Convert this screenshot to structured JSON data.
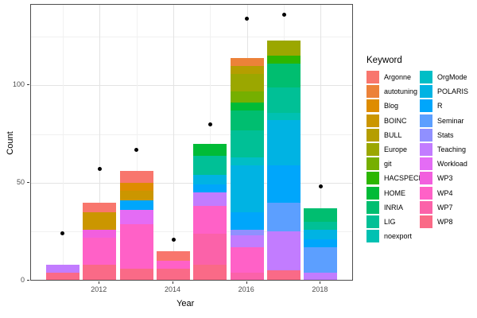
{
  "figure": {
    "x_axis_title": "Year",
    "y_axis_title": "Count",
    "legend_title": "Keyword"
  },
  "chart_data": {
    "type": "bar",
    "subtype": "stacked-bars-with-points",
    "title": "",
    "xlabel": "Year",
    "ylabel": "Count",
    "legend_title": "Keyword",
    "legend_position": "right",
    "grid": true,
    "ylim": [
      0,
      141
    ],
    "x_major_ticks": [
      2012,
      2014,
      2016,
      2018
    ],
    "x_minor_ticks": [
      2011,
      2013,
      2015,
      2017
    ],
    "y_major_ticks": [
      0,
      50,
      100
    ],
    "y_minor_ticks": [
      25,
      75,
      125
    ],
    "keywords": [
      {
        "label": "Argonne",
        "color": "#F8766D"
      },
      {
        "label": "autotuning",
        "color": "#EC8239"
      },
      {
        "label": "Blog",
        "color": "#DE8C00"
      },
      {
        "label": "BOINC",
        "color": "#CB9600"
      },
      {
        "label": "BULL",
        "color": "#B59E00"
      },
      {
        "label": "Europe",
        "color": "#9BA700"
      },
      {
        "label": "git",
        "color": "#76AF00"
      },
      {
        "label": "HACSPECIS",
        "color": "#2CB600"
      },
      {
        "label": "HOME",
        "color": "#00BB37"
      },
      {
        "label": "INRIA",
        "color": "#00BE70"
      },
      {
        "label": "LIG",
        "color": "#00C096"
      },
      {
        "label": "noexport",
        "color": "#00C1B2"
      },
      {
        "label": "OrgMode",
        "color": "#00BEC6"
      },
      {
        "label": "POLARIS",
        "color": "#00B3E3"
      },
      {
        "label": "R",
        "color": "#00A6FB"
      },
      {
        "label": "Seminar",
        "color": "#5C9FFF"
      },
      {
        "label": "Stats",
        "color": "#9090FF"
      },
      {
        "label": "Teaching",
        "color": "#C27CFF"
      },
      {
        "label": "Workload",
        "color": "#E46CF5"
      },
      {
        "label": "WP3",
        "color": "#F25FDE"
      },
      {
        "label": "WP4",
        "color": "#FF61C7"
      },
      {
        "label": "WP7",
        "color": "#FB62A9"
      },
      {
        "label": "WP8",
        "color": "#FA6A87"
      }
    ],
    "bars": [
      {
        "year": 2011,
        "total": 8,
        "segments": [
          {
            "keyword": "WP8",
            "value": 4
          },
          {
            "keyword": "Teaching",
            "value": 4
          }
        ]
      },
      {
        "year": 2012,
        "total": 40,
        "segments": [
          {
            "keyword": "WP8",
            "value": 8
          },
          {
            "keyword": "WP4",
            "value": 14
          },
          {
            "keyword": "WP3",
            "value": 4
          },
          {
            "keyword": "BOINC",
            "value": 9
          },
          {
            "keyword": "Argonne",
            "value": 5
          }
        ]
      },
      {
        "year": 2013,
        "total": 56,
        "segments": [
          {
            "keyword": "WP8",
            "value": 6
          },
          {
            "keyword": "WP4",
            "value": 23
          },
          {
            "keyword": "Workload",
            "value": 7
          },
          {
            "keyword": "R",
            "value": 5
          },
          {
            "keyword": "BOINC",
            "value": 5
          },
          {
            "keyword": "Blog",
            "value": 4
          },
          {
            "keyword": "Argonne",
            "value": 6
          }
        ]
      },
      {
        "year": 2014,
        "total": 15,
        "segments": [
          {
            "keyword": "WP8",
            "value": 6
          },
          {
            "keyword": "WP4",
            "value": 4
          },
          {
            "keyword": "Argonne",
            "value": 5
          }
        ]
      },
      {
        "year": 2015,
        "total": 70,
        "segments": [
          {
            "keyword": "WP8",
            "value": 8
          },
          {
            "keyword": "WP7",
            "value": 16
          },
          {
            "keyword": "WP4",
            "value": 14
          },
          {
            "keyword": "Teaching",
            "value": 7
          },
          {
            "keyword": "R",
            "value": 4
          },
          {
            "keyword": "POLARIS",
            "value": 5
          },
          {
            "keyword": "LIG",
            "value": 10
          },
          {
            "keyword": "HOME",
            "value": 6
          }
        ]
      },
      {
        "year": 2016,
        "total": 114,
        "segments": [
          {
            "keyword": "WP7",
            "value": 4
          },
          {
            "keyword": "WP4",
            "value": 13
          },
          {
            "keyword": "Teaching",
            "value": 6
          },
          {
            "keyword": "Stats",
            "value": 3
          },
          {
            "keyword": "R",
            "value": 9
          },
          {
            "keyword": "POLARIS",
            "value": 24
          },
          {
            "keyword": "OrgMode",
            "value": 4
          },
          {
            "keyword": "LIG",
            "value": 14
          },
          {
            "keyword": "INRIA",
            "value": 10
          },
          {
            "keyword": "HOME",
            "value": 4
          },
          {
            "keyword": "git",
            "value": 6
          },
          {
            "keyword": "Europe",
            "value": 9
          },
          {
            "keyword": "BULL",
            "value": 4
          },
          {
            "keyword": "autotuning",
            "value": 4
          }
        ]
      },
      {
        "year": 2017,
        "total": 123,
        "segments": [
          {
            "keyword": "WP8",
            "value": 5
          },
          {
            "keyword": "Teaching",
            "value": 20
          },
          {
            "keyword": "Seminar",
            "value": 15
          },
          {
            "keyword": "R",
            "value": 19
          },
          {
            "keyword": "POLARIS",
            "value": 23
          },
          {
            "keyword": "noexport",
            "value": 4
          },
          {
            "keyword": "LIG",
            "value": 13
          },
          {
            "keyword": "INRIA",
            "value": 12
          },
          {
            "keyword": "HACSPECIS",
            "value": 4
          },
          {
            "keyword": "Europe",
            "value": 8
          }
        ]
      },
      {
        "year": 2018,
        "total": 37,
        "segments": [
          {
            "keyword": "Teaching",
            "value": 4
          },
          {
            "keyword": "Seminar",
            "value": 13
          },
          {
            "keyword": "R",
            "value": 4
          },
          {
            "keyword": "POLARIS",
            "value": 5
          },
          {
            "keyword": "LIG",
            "value": 4
          },
          {
            "keyword": "INRIA",
            "value": 7
          }
        ]
      }
    ],
    "points": [
      {
        "year": 2011,
        "value": 24
      },
      {
        "year": 2012,
        "value": 57
      },
      {
        "year": 2013,
        "value": 67
      },
      {
        "year": 2014,
        "value": 21
      },
      {
        "year": 2015,
        "value": 80
      },
      {
        "year": 2016,
        "value": 134
      },
      {
        "year": 2017,
        "value": 136
      },
      {
        "year": 2018,
        "value": 48
      }
    ]
  }
}
